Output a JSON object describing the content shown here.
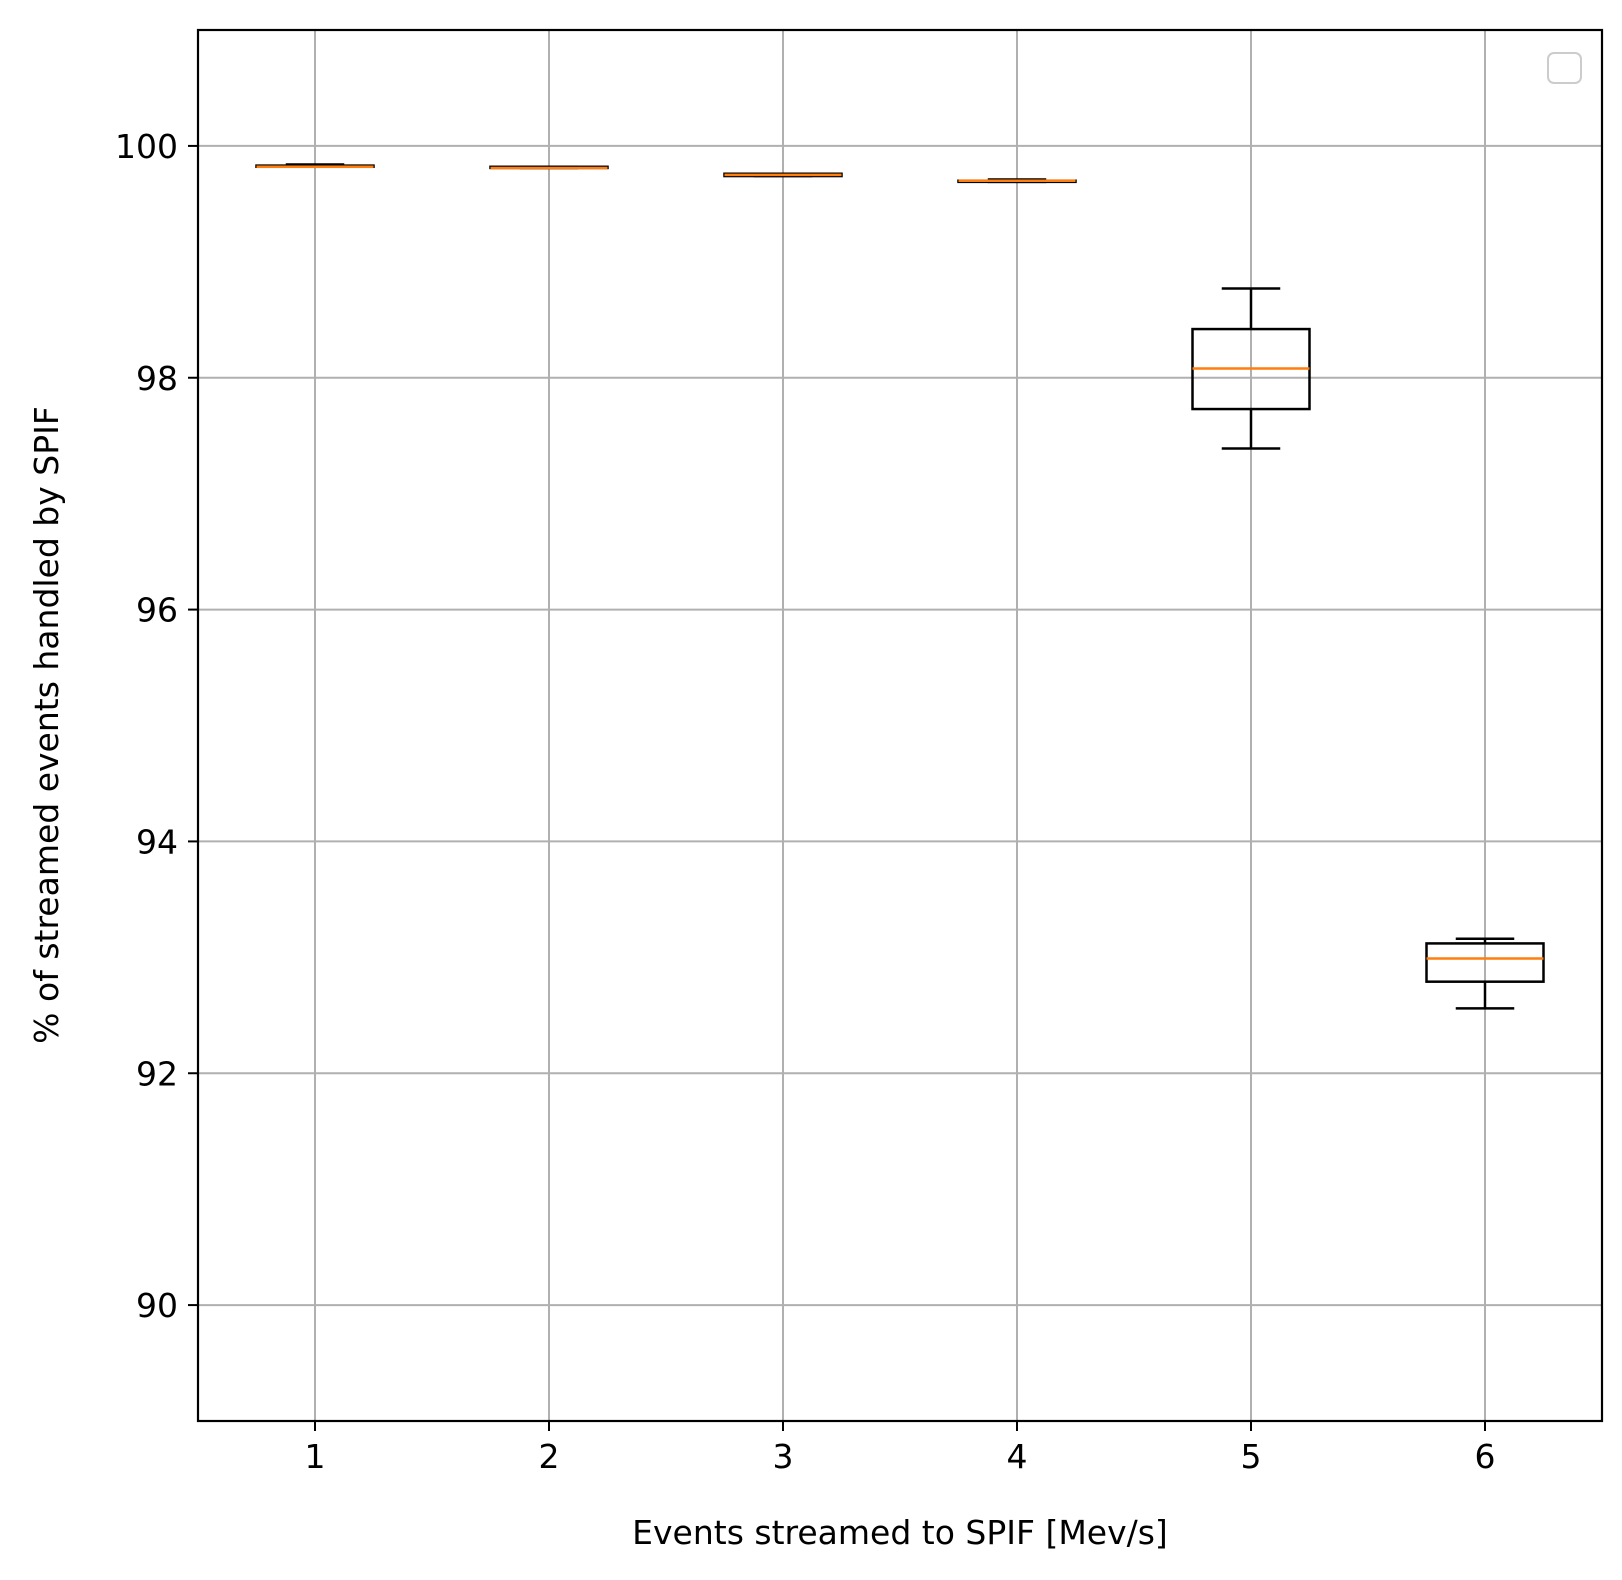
{
  "chart_data": {
    "type": "box",
    "title": "",
    "xlabel": "Events streamed to SPIF [Mev/s]",
    "ylabel": "% of streamed events handled by SPIF",
    "x_ticks": [
      "1",
      "2",
      "3",
      "4",
      "5",
      "6"
    ],
    "y_ticks": [
      90,
      92,
      94,
      96,
      98,
      100
    ],
    "xlim": [
      0.5,
      6.5
    ],
    "ylim": [
      89.0,
      101.0
    ],
    "grid": true,
    "legend": {
      "placement": "top-right",
      "entries": []
    },
    "boxes": [
      {
        "x": 1,
        "whisker_low": 99.82,
        "q1": 99.82,
        "median": 99.82,
        "q3": 99.83,
        "whisker_high": 99.84
      },
      {
        "x": 2,
        "whisker_low": 99.81,
        "q1": 99.81,
        "median": 99.81,
        "q3": 99.82,
        "whisker_high": 99.82
      },
      {
        "x": 3,
        "whisker_low": 99.74,
        "q1": 99.74,
        "median": 99.75,
        "q3": 99.76,
        "whisker_high": 99.76
      },
      {
        "x": 4,
        "whisker_low": 99.69,
        "q1": 99.69,
        "median": 99.7,
        "q3": 99.7,
        "whisker_high": 99.71
      },
      {
        "x": 5,
        "whisker_low": 97.39,
        "q1": 97.73,
        "median": 98.08,
        "q3": 98.42,
        "whisker_high": 98.77
      },
      {
        "x": 6,
        "whisker_low": 92.56,
        "q1": 92.79,
        "median": 92.99,
        "q3": 93.12,
        "whisker_high": 93.16
      }
    ],
    "colors": {
      "box_edge": "#000000",
      "median": "#ff7f0e",
      "grid": "#b0b0b0",
      "legend_border": "#cccccc"
    }
  }
}
